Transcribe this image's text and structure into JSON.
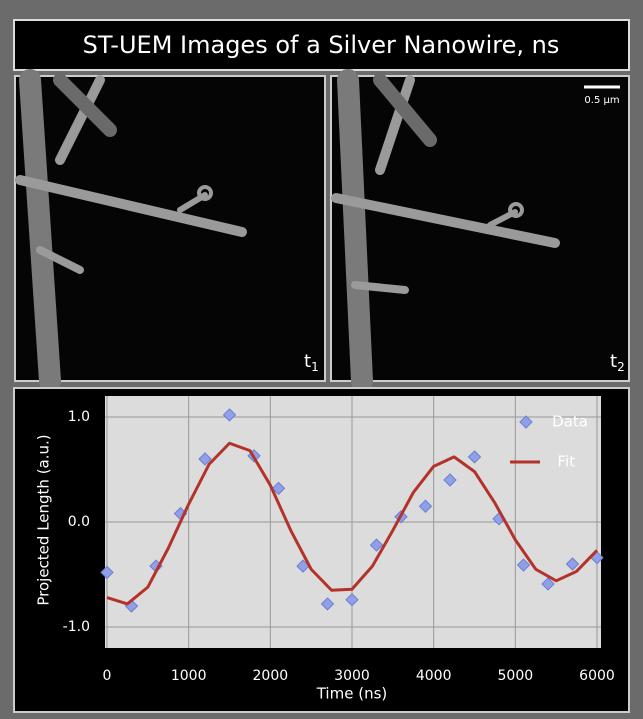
{
  "title": "ST-UEM Images of a Silver Nanowire, ns",
  "panels": [
    {
      "label": "t",
      "subscript": "1"
    },
    {
      "label": "t",
      "subscript": "2"
    }
  ],
  "scale_bar": "0.5 μm",
  "chart_data": {
    "type": "scatter-line",
    "ylabel": "Projected Length (a.u.)",
    "xlabel": "Time (ns)",
    "xlim": [
      0,
      6000
    ],
    "xticks": [
      0,
      1000,
      2000,
      3000,
      4000,
      5000,
      6000
    ],
    "ylim": [
      -1.2,
      1.2
    ],
    "yticks": [
      {
        "value": -1,
        "label": "-1.0"
      },
      {
        "value": 0,
        "label": "0.0"
      },
      {
        "value": 1,
        "label": "1.0"
      }
    ],
    "grid": true,
    "legend": "upper right",
    "series": [
      {
        "name": "Data",
        "color": "#8fa0e8",
        "marker": "diamond",
        "x": [
          0,
          300,
          600,
          900,
          1200,
          1500,
          1800,
          2100,
          2400,
          2700,
          3000,
          3300,
          3600,
          3900,
          4200,
          4500,
          4800,
          5100,
          5400,
          5700,
          6000
        ],
        "values": [
          -0.48,
          -0.8,
          -0.42,
          0.08,
          0.6,
          1.02,
          0.63,
          0.32,
          -0.42,
          -0.78,
          -0.74,
          -0.22,
          0.05,
          0.15,
          0.4,
          0.62,
          0.03,
          -0.41,
          -0.59,
          -0.4,
          -0.34
        ]
      },
      {
        "name": "Fit",
        "color": "#b3322a",
        "marker": "line",
        "x": [
          0,
          250,
          500,
          750,
          1000,
          1250,
          1500,
          1750,
          2000,
          2250,
          2500,
          2750,
          3000,
          3250,
          3500,
          3750,
          4000,
          4250,
          4500,
          4750,
          5000,
          5250,
          5500,
          5750,
          6000
        ],
        "values": [
          -0.72,
          -0.78,
          -0.62,
          -0.25,
          0.17,
          0.55,
          0.75,
          0.68,
          0.35,
          -0.08,
          -0.45,
          -0.65,
          -0.64,
          -0.42,
          -0.08,
          0.28,
          0.53,
          0.62,
          0.48,
          0.18,
          -0.17,
          -0.45,
          -0.56,
          -0.47,
          -0.27
        ]
      }
    ]
  }
}
